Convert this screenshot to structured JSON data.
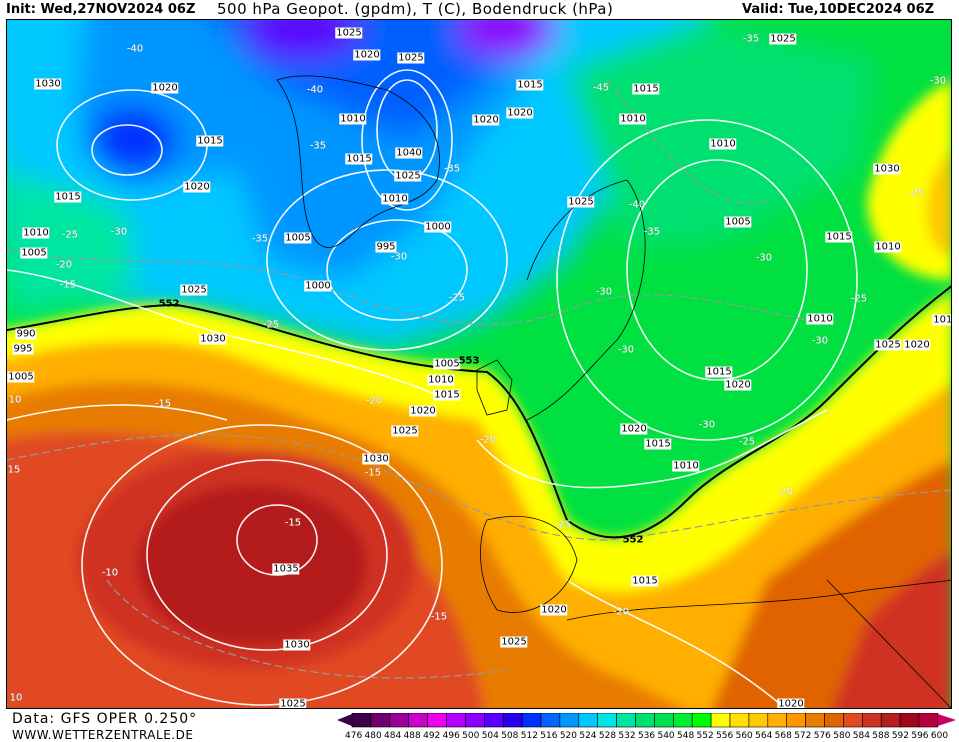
{
  "header": {
    "init": "Init: Wed,27NOV2024 06Z",
    "title": "500 hPa Geopot. (gpdm), T (C), Bodendruck (hPa)",
    "valid": "Valid: Tue,10DEC2024 06Z"
  },
  "footer": {
    "data_source": "Data: GFS OPER 0.250°",
    "website": "WWW.WETTERZENTRALE.DE"
  },
  "colorbar": {
    "labels": [
      "476",
      "480",
      "484",
      "488",
      "492",
      "496",
      "500",
      "504",
      "508",
      "512",
      "516",
      "520",
      "524",
      "528",
      "532",
      "536",
      "540",
      "548",
      "552",
      "556",
      "560",
      "564",
      "568",
      "572",
      "576",
      "580",
      "584",
      "588",
      "592",
      "596",
      "600"
    ],
    "colors": [
      "#3c0046",
      "#6e006e",
      "#9a009a",
      "#c800c8",
      "#f000f0",
      "#b400ff",
      "#8c00ff",
      "#5a00ff",
      "#2800f0",
      "#0030ff",
      "#0064ff",
      "#0096ff",
      "#00c8ff",
      "#00e6e6",
      "#00e6a0",
      "#00e070",
      "#00e050",
      "#00ee30",
      "#00ff00",
      "#ffff00",
      "#ffe000",
      "#ffc800",
      "#ffaf00",
      "#ff9600",
      "#e87c00",
      "#e06400",
      "#e04a20",
      "#d03222",
      "#b41e1e",
      "#a0061e",
      "#b4003c"
    ],
    "low_arrow_color": "#3c0046",
    "high_arrow_color": "#c80064"
  },
  "map": {
    "isobar_labels": [
      "1025",
      "1020",
      "1025",
      "1030",
      "1020",
      "1015",
      "1020",
      "1015",
      "1010",
      "1025",
      "1010",
      "1020",
      "1015",
      "1040",
      "1015",
      "1025",
      "1020",
      "1015",
      "1010",
      "1025",
      "1010",
      "1030",
      "1000",
      "1005",
      "1005",
      "1010",
      "1005",
      "995",
      "1015",
      "1010",
      "1000",
      "1025",
      "1030",
      "1010",
      "1025",
      "1020",
      "990",
      "995",
      "1005",
      "1005",
      "1010",
      "1015",
      "1015",
      "1020",
      "1020",
      "1025",
      "1020",
      "1015",
      "1010",
      "1030",
      "1035",
      "1015",
      "1020",
      "1030",
      "1025",
      "1025",
      "1020",
      "1010"
    ],
    "temperature_labels": [
      "-40",
      "-35",
      "-40",
      "-30",
      "-45",
      "-35",
      "-35",
      "-25",
      "-40",
      "-35",
      "-25",
      "-30",
      "-35",
      "-30",
      "-30",
      "-20",
      "-15",
      "-25",
      "-30",
      "-25",
      "-25",
      "-30",
      "-30",
      "-15",
      "-20",
      "-20",
      "-30",
      "-25",
      "-15",
      "-20",
      "-15",
      "-25",
      "-10",
      "-20",
      "-15",
      "10",
      "15",
      "10"
    ],
    "geopotential_labels": [
      "552",
      "553",
      "552"
    ]
  }
}
